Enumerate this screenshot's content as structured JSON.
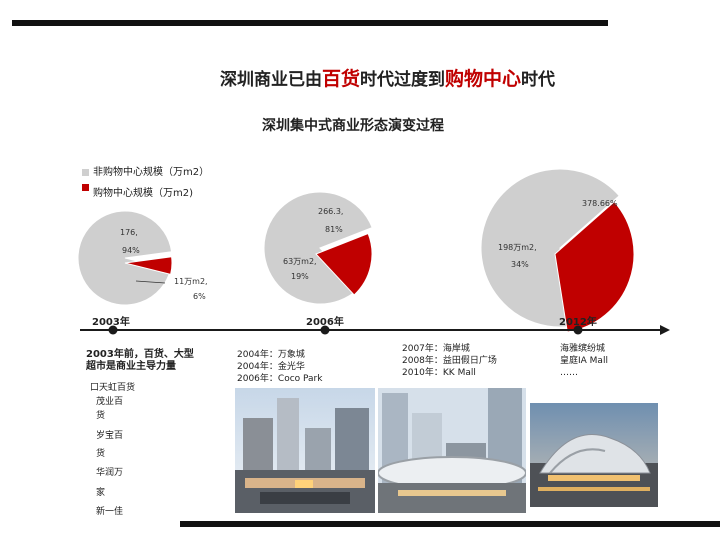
{
  "title": {
    "part1": "深圳商业已由",
    "hl1": "百货",
    "part2": "时代过度到",
    "hl2": "购物中心",
    "part3": "时代"
  },
  "subtitle": "深圳集中式商业形态演变过程",
  "legend": {
    "non_mall": "非购物中心规模（万m2）",
    "mall": "购物中心规模（万m2)"
  },
  "colors": {
    "non_mall": "#cfcfcf",
    "mall": "#c00000",
    "bar": "#111111"
  },
  "chart_data": {
    "type": "pie",
    "pies": [
      {
        "year": "2003年",
        "slices": [
          {
            "series": "非购物中心",
            "value": 94,
            "label1": "176,",
            "label2": "94%"
          },
          {
            "series": "购物中心",
            "value": 6,
            "label1": "11万m2,",
            "label2": "6%"
          }
        ]
      },
      {
        "year": "2006年",
        "slices": [
          {
            "series": "非购物中心",
            "value": 81,
            "label1": "266.3,",
            "label2": "81%"
          },
          {
            "series": "购物中心",
            "value": 19,
            "label1": "63万m2,",
            "label2": "19%"
          }
        ]
      },
      {
        "year": "2012年",
        "slices": [
          {
            "series": "非购物中心",
            "value": 66,
            "label1": "378.66%",
            "label2": ""
          },
          {
            "series": "购物中心",
            "value": 34,
            "label1": "198万m2,",
            "label2": "34%"
          }
        ]
      }
    ]
  },
  "timeline": {
    "y2003": "2003年",
    "y2006": "2006年",
    "y2012": "2012年"
  },
  "col2003": {
    "heading1": "2003年前，百货、大型",
    "heading2": "超市是商业主导力量",
    "items": [
      "口天虹百货",
      "茂业百",
      "货",
      "岁宝百",
      "货",
      "华润万",
      "家",
      "新一佳"
    ]
  },
  "col2006": {
    "lines": [
      "2004年：万象城",
      "2004年：金光华",
      "2006年：Coco Park"
    ]
  },
  "col2007": {
    "lines": [
      "2007年：海岸城",
      "2008年：益田假日广场",
      "2010年：KK Mall"
    ]
  },
  "col2012": {
    "lines": [
      "海雅缤纷城",
      "皇庭IA Mall",
      "……"
    ]
  }
}
